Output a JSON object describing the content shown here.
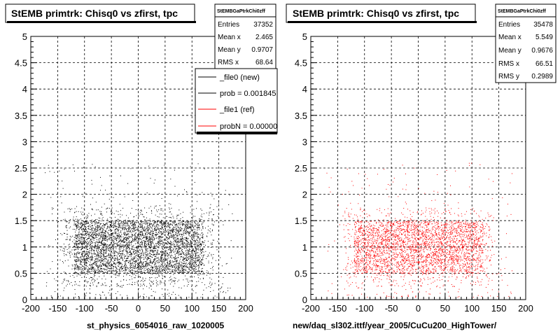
{
  "chart_data": [
    {
      "type": "scatter",
      "title": "StEMB primtrk: Chisq0 vs zfirst, tpc",
      "xlabel": "st_physics_6054016_raw_1020005",
      "xlim": [
        -200,
        200
      ],
      "ylim": [
        0,
        5
      ],
      "x_ticks": [
        "-200",
        "-150",
        "-100",
        "-50",
        "0",
        "50",
        "100",
        "150",
        "200"
      ],
      "y_ticks": [
        "0",
        "0.5",
        "1",
        "1.5",
        "2",
        "2.5",
        "3",
        "3.5",
        "4",
        "4.5",
        "5"
      ],
      "grid": true,
      "color": "#000000",
      "stats": {
        "header": "StEMBGaPtrkChi0zff",
        "rows": [
          {
            "label": "Entries",
            "value": "37352"
          },
          {
            "label": "Mean x",
            "value": "2.465"
          },
          {
            "label": "Mean y",
            "value": "0.9707"
          },
          {
            "label": "RMS x",
            "value": "68.64"
          }
        ]
      },
      "legend": {
        "placement": "top-right",
        "entries": [
          {
            "label": "_file0 (new)",
            "color": "#000000"
          },
          {
            "label": "prob = 0.001845",
            "color": "#000000"
          },
          {
            "label": "_file1 (ref)",
            "color": "#ff0000"
          },
          {
            "label": "probN = 0.00000",
            "color": "#ff0000"
          }
        ]
      },
      "distribution": {
        "core_x": [
          -120,
          120
        ],
        "core_y": [
          0.5,
          1.5
        ],
        "points": 5200
      }
    },
    {
      "type": "scatter",
      "title": "StEMB primtrk: Chisq0 vs zfirst, tpc",
      "xlabel": "new/daq_sl302.ittf/year_2005/CuCu200_HighTower/",
      "xlim": [
        -200,
        200
      ],
      "ylim": [
        0,
        5
      ],
      "x_ticks": [
        "-200",
        "-150",
        "-100",
        "-50",
        "0",
        "50",
        "100",
        "150",
        "200"
      ],
      "y_ticks": [
        "0",
        "0.5",
        "1",
        "1.5",
        "2",
        "2.5",
        "3",
        "3.5",
        "4",
        "4.5",
        "5"
      ],
      "grid": true,
      "color": "#ff0000",
      "stats": {
        "header": "StEMBGaPtrkChi0zff",
        "rows": [
          {
            "label": "Entries",
            "value": "35478"
          },
          {
            "label": "Mean x",
            "value": "5.549"
          },
          {
            "label": "Mean y",
            "value": "0.9676"
          },
          {
            "label": "RMS x",
            "value": "66.51"
          },
          {
            "label": "RMS y",
            "value": "0.2989"
          }
        ]
      },
      "distribution": {
        "core_x": [
          -120,
          120
        ],
        "core_y": [
          0.5,
          1.5
        ],
        "points": 3600
      }
    }
  ]
}
